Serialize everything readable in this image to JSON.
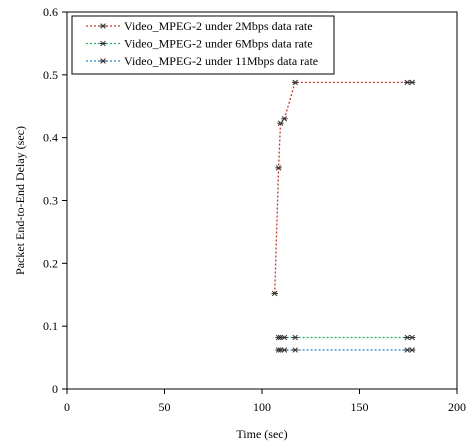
{
  "chart_data": {
    "type": "line",
    "title": "",
    "xlabel": "Time (sec)",
    "ylabel": "Packet End-to-End Delay (sec)",
    "xlim": [
      0,
      200
    ],
    "ylim": [
      0,
      0.6
    ],
    "xticks": [
      0,
      50,
      100,
      150,
      200
    ],
    "yticks": [
      0,
      0.1,
      0.2,
      0.3,
      0.4,
      0.5,
      0.6
    ],
    "grid": false,
    "legend_position": "top-left",
    "series": [
      {
        "name": "Video_MPEG-2 under 2Mbps data rate",
        "color": "#c0392b",
        "x": [
          106.5,
          108.5,
          109.5,
          111.5,
          117,
          174.5,
          177
        ],
        "y": [
          0.152,
          0.352,
          0.423,
          0.43,
          0.488,
          0.488,
          0.488
        ]
      },
      {
        "name": "Video_MPEG-2 under 6Mbps data rate",
        "color": "#27ae60",
        "x": [
          108.5,
          109.5,
          111.5,
          117,
          174.5,
          177
        ],
        "y": [
          0.082,
          0.082,
          0.082,
          0.082,
          0.082,
          0.082
        ]
      },
      {
        "name": "Video_MPEG-2 under 11Mbps data rate",
        "color": "#2e86c1",
        "x": [
          108.5,
          109.5,
          111.5,
          117,
          174.5,
          177
        ],
        "y": [
          0.062,
          0.062,
          0.062,
          0.062,
          0.062,
          0.062
        ]
      }
    ]
  }
}
